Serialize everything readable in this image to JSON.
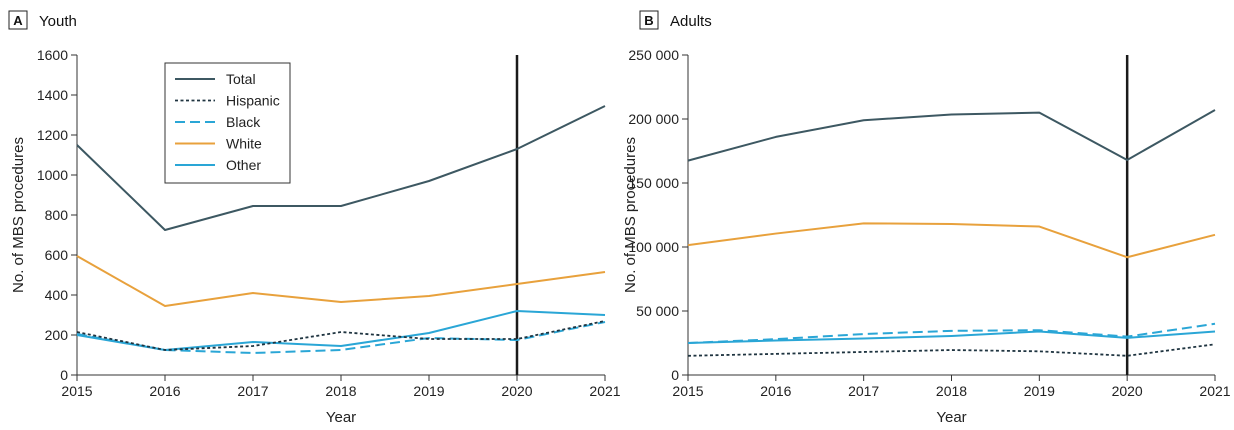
{
  "colors": {
    "Total": "#3d5862",
    "Hispanic": "#1f3440",
    "Black": "#2aa6d6",
    "White": "#e8a13c",
    "Other": "#2aa6d6",
    "vline": "#1a1a1a",
    "axis": "#333333"
  },
  "chart_data": [
    {
      "type": "line",
      "panel_label": "A",
      "title": "Youth",
      "xlabel": "Year",
      "ylabel": "No. of MBS procedures",
      "x": [
        2015,
        2016,
        2017,
        2018,
        2019,
        2020,
        2021
      ],
      "ylim": [
        0,
        1600
      ],
      "yticks": [
        0,
        200,
        400,
        600,
        800,
        1000,
        1200,
        1400,
        1600
      ],
      "ytick_labels": [
        "0",
        "200",
        "400",
        "600",
        "800",
        "1000",
        "1200",
        "1400",
        "1600"
      ],
      "vline_x": 2020,
      "legend_position": "top-left",
      "series": [
        {
          "name": "Total",
          "style": "solid",
          "values": [
            1150,
            725,
            845,
            845,
            970,
            1130,
            1345
          ]
        },
        {
          "name": "Hispanic",
          "style": "dotted",
          "values": [
            215,
            125,
            145,
            215,
            180,
            180,
            270
          ]
        },
        {
          "name": "Black",
          "style": "dashed",
          "values": [
            205,
            125,
            110,
            125,
            185,
            175,
            265
          ]
        },
        {
          "name": "White",
          "style": "solid",
          "values": [
            595,
            345,
            410,
            365,
            395,
            455,
            515
          ]
        },
        {
          "name": "Other",
          "style": "solid",
          "values": [
            200,
            125,
            165,
            145,
            210,
            320,
            300
          ]
        }
      ]
    },
    {
      "type": "line",
      "panel_label": "B",
      "title": "Adults",
      "xlabel": "Year",
      "ylabel": "No. of MBS procedures",
      "x": [
        2015,
        2016,
        2017,
        2018,
        2019,
        2020,
        2021
      ],
      "ylim": [
        0,
        250000
      ],
      "yticks": [
        0,
        50000,
        100000,
        150000,
        200000,
        250000
      ],
      "ytick_labels": [
        "0",
        "50 000",
        "100 000",
        "150 000",
        "200 000",
        "250 000"
      ],
      "vline_x": 2020,
      "series": [
        {
          "name": "Total",
          "style": "solid",
          "values": [
            167500,
            186000,
            199000,
            203500,
            205000,
            168000,
            207000
          ]
        },
        {
          "name": "Hispanic",
          "style": "dotted",
          "values": [
            15000,
            16500,
            18000,
            19500,
            18500,
            15000,
            24000
          ]
        },
        {
          "name": "Black",
          "style": "dashed",
          "values": [
            25000,
            28000,
            32000,
            34500,
            35000,
            30000,
            40000
          ]
        },
        {
          "name": "White",
          "style": "solid",
          "values": [
            101500,
            110500,
            118500,
            118000,
            116000,
            92000,
            109500
          ]
        },
        {
          "name": "Other",
          "style": "solid",
          "values": [
            25000,
            27000,
            28500,
            30500,
            34000,
            29000,
            34000
          ]
        }
      ]
    }
  ]
}
